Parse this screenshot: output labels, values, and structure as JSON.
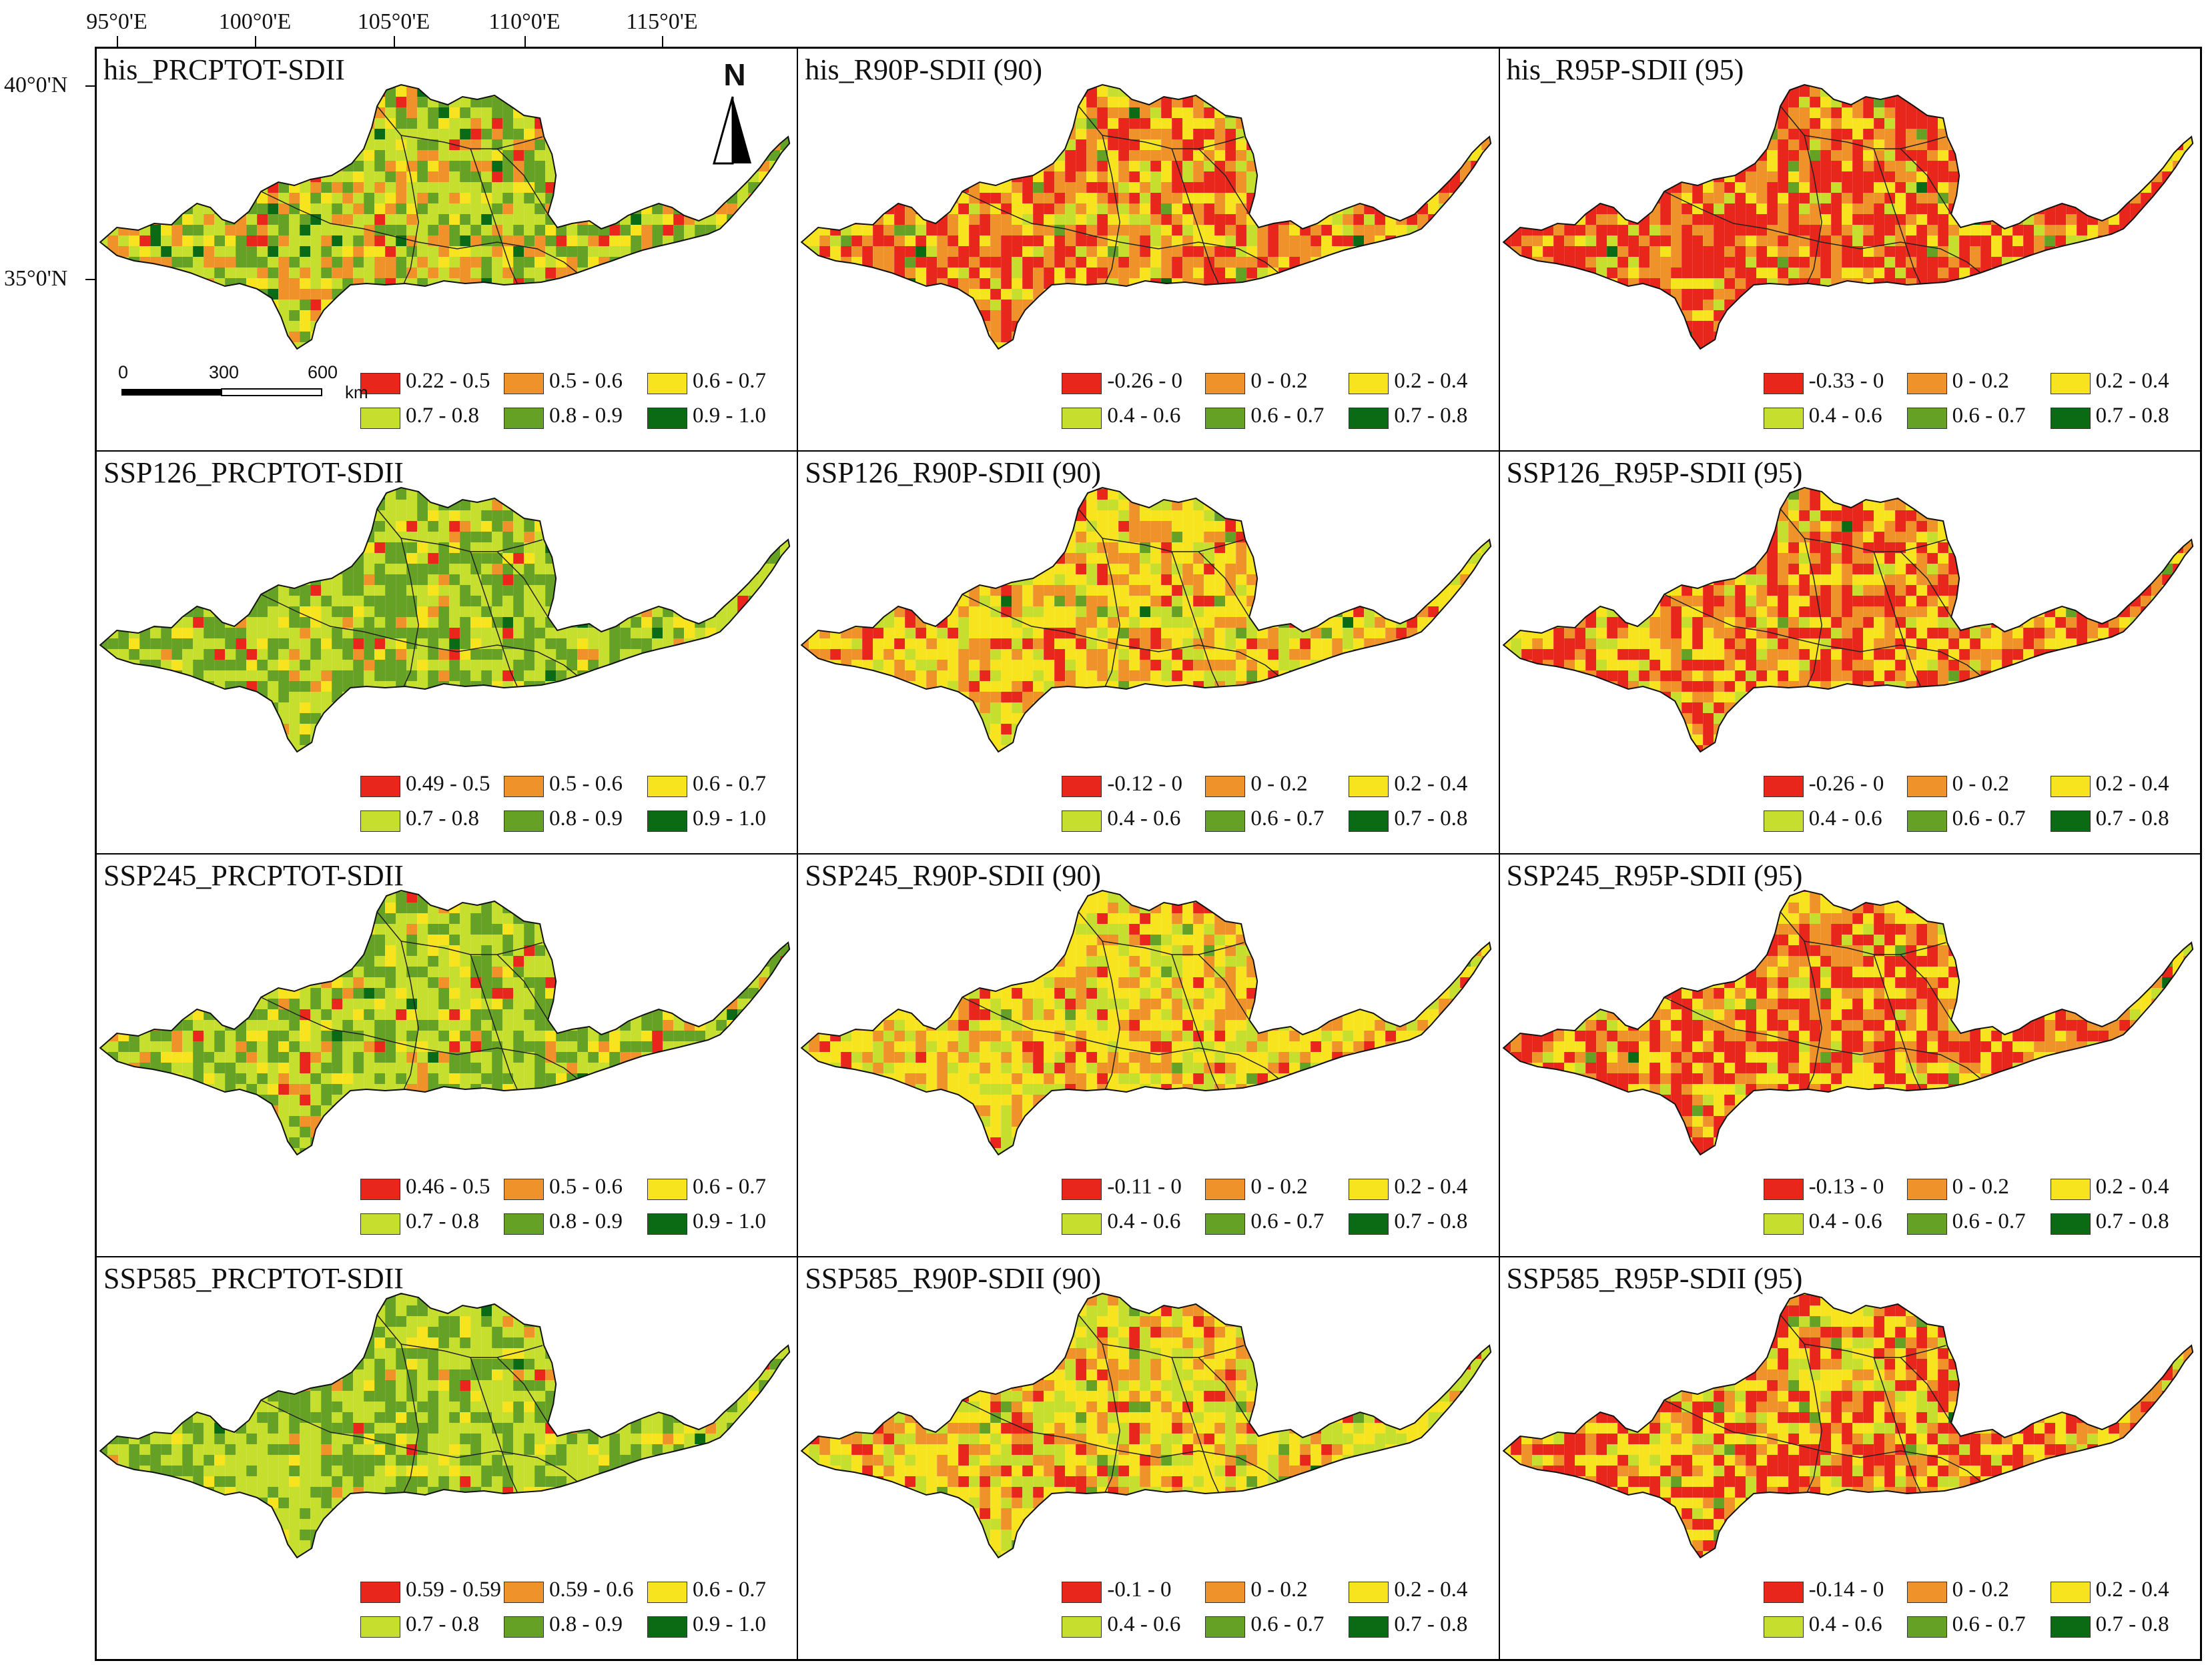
{
  "axes": {
    "longitude_labels": [
      "95°0'E",
      "100°0'E",
      "105°0'E",
      "110°0'E",
      "115°0'E"
    ],
    "latitude_labels": [
      "40°0'N",
      "35°0'N"
    ]
  },
  "map_elements": {
    "north_label": "N",
    "scale_labels": [
      "0",
      "300",
      "600"
    ],
    "scale_unit": "km"
  },
  "ramps": {
    "ratio": [
      "#e8261c",
      "#f0922a",
      "#f7e41f",
      "#c6df2f",
      "#65a124",
      "#0b6b14"
    ],
    "r_index": [
      "#e8261c",
      "#f0922a",
      "#f7e41f",
      "#c6df2f",
      "#65a124",
      "#0b6b14"
    ]
  },
  "panels": [
    {
      "title": "his_PRCPTOT-SDII",
      "dist": [
        0.05,
        0.17,
        0.12,
        0.38,
        0.25,
        0.03
      ],
      "legend": [
        "0.22 - 0.5",
        "0.5 - 0.6",
        "0.6 - 0.7",
        "0.7 - 0.8",
        "0.8 - 0.9",
        "0.9 - 1.0"
      ]
    },
    {
      "title": "his_R90P-SDII (90)",
      "dist": [
        0.28,
        0.32,
        0.25,
        0.11,
        0.03,
        0.01
      ],
      "legend": [
        "-0.26 - 0",
        "0 - 0.2",
        "0.2 - 0.4",
        "0.4 - 0.6",
        "0.6 - 0.7",
        "0.7 - 0.8"
      ]
    },
    {
      "title": "his_R95P-SDII (95)",
      "dist": [
        0.48,
        0.27,
        0.16,
        0.07,
        0.015,
        0.005
      ],
      "legend": [
        "-0.33 - 0",
        "0 - 0.2",
        "0.2 - 0.4",
        "0.4 - 0.6",
        "0.6 - 0.7",
        "0.7 - 0.8"
      ]
    },
    {
      "title": "SSP126_PRCPTOT-SDII",
      "dist": [
        0.02,
        0.06,
        0.08,
        0.44,
        0.39,
        0.01
      ],
      "legend": [
        "0.49 - 0.5",
        "0.5 - 0.6",
        "0.6 - 0.7",
        "0.7 - 0.8",
        "0.8 - 0.9",
        "0.9 - 1.0"
      ]
    },
    {
      "title": "SSP126_R90P-SDII (90)",
      "dist": [
        0.1,
        0.25,
        0.45,
        0.18,
        0.015,
        0.005
      ],
      "legend": [
        "-0.12 - 0",
        "0 - 0.2",
        "0.2 - 0.4",
        "0.4 - 0.6",
        "0.6 - 0.7",
        "0.7 - 0.8"
      ]
    },
    {
      "title": "SSP126_R95P-SDII (95)",
      "dist": [
        0.34,
        0.3,
        0.26,
        0.08,
        0.015,
        0.005
      ],
      "legend": [
        "-0.26 - 0",
        "0 - 0.2",
        "0.2 - 0.4",
        "0.4 - 0.6",
        "0.6 - 0.7",
        "0.7 - 0.8"
      ]
    },
    {
      "title": "SSP245_PRCPTOT-SDII",
      "dist": [
        0.04,
        0.07,
        0.1,
        0.42,
        0.36,
        0.01
      ],
      "legend": [
        "0.46 - 0.5",
        "0.5 - 0.6",
        "0.6 - 0.7",
        "0.7 - 0.8",
        "0.8 - 0.9",
        "0.9 - 1.0"
      ]
    },
    {
      "title": "SSP245_R90P-SDII (90)",
      "dist": [
        0.07,
        0.24,
        0.45,
        0.22,
        0.015,
        0.005
      ],
      "legend": [
        "-0.11 - 0",
        "0 - 0.2",
        "0.2 - 0.4",
        "0.4 - 0.6",
        "0.6 - 0.7",
        "0.7 - 0.8"
      ]
    },
    {
      "title": "SSP245_R95P-SDII (95)",
      "dist": [
        0.4,
        0.26,
        0.26,
        0.06,
        0.015,
        0.005
      ],
      "legend": [
        "-0.13 - 0",
        "0 - 0.2",
        "0.2 - 0.4",
        "0.4 - 0.6",
        "0.6 - 0.7",
        "0.7 - 0.8"
      ]
    },
    {
      "title": "SSP585_PRCPTOT-SDII",
      "dist": [
        0.01,
        0.03,
        0.08,
        0.52,
        0.35,
        0.01
      ],
      "legend": [
        "0.59 - 0.59",
        "0.59 - 0.6",
        "0.6 - 0.7",
        "0.7 - 0.8",
        "0.8 - 0.9",
        "0.9 - 1.0"
      ]
    },
    {
      "title": "SSP585_R90P-SDII (90)",
      "dist": [
        0.1,
        0.22,
        0.36,
        0.29,
        0.025,
        0.005
      ],
      "legend": [
        "-0.1 - 0",
        "0 - 0.2",
        "0.2 - 0.4",
        "0.4 - 0.6",
        "0.6 - 0.7",
        "0.7 - 0.8"
      ]
    },
    {
      "title": "SSP585_R95P-SDII (95)",
      "dist": [
        0.36,
        0.2,
        0.3,
        0.12,
        0.015,
        0.005
      ],
      "legend": [
        "-0.14 - 0",
        "0 - 0.2",
        "0.2 - 0.4",
        "0.4 - 0.6",
        "0.6 - 0.7",
        "0.7 - 0.8"
      ]
    }
  ]
}
